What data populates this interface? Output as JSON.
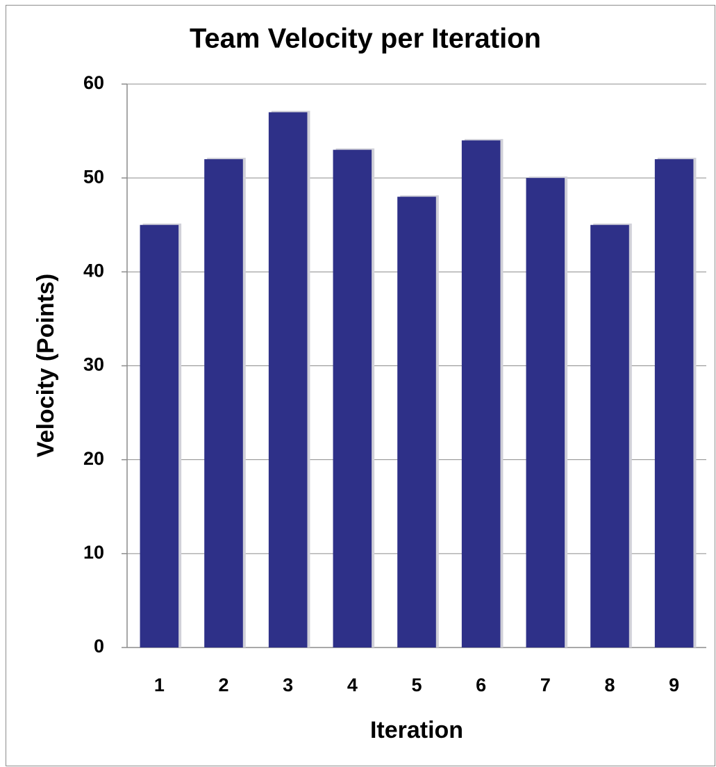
{
  "chart_data": {
    "type": "bar",
    "title": "Team Velocity per Iteration",
    "x_label": "Iteration",
    "y_label": "Velocity (Points)",
    "categories": [
      "1",
      "2",
      "3",
      "4",
      "5",
      "6",
      "7",
      "8",
      "9"
    ],
    "values": [
      45,
      52,
      57,
      53,
      48,
      54,
      50,
      45,
      52
    ],
    "color": "#2e3088",
    "ylim": [
      0,
      60
    ],
    "yticks": [
      0,
      10,
      20,
      30,
      40,
      50,
      60
    ],
    "grid": true
  }
}
